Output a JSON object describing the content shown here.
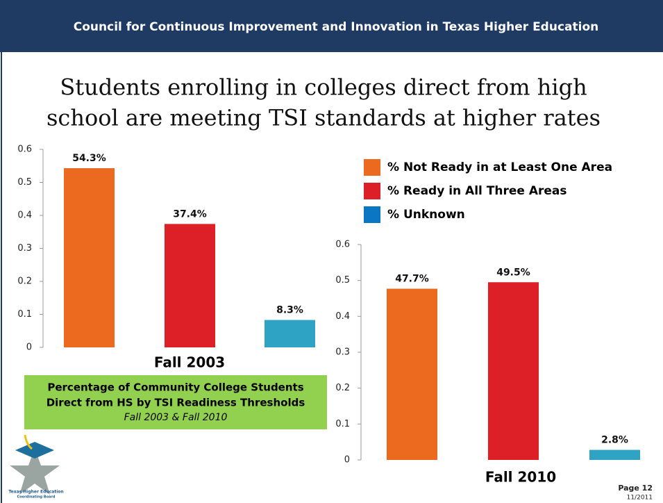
{
  "header": "Council for Continuous Improvement and Innovation in Texas Higher Education",
  "title": [
    "Students enrolling in colleges direct from high",
    "school are meeting TSI standards at higher rates"
  ],
  "chart_data": [
    {
      "type": "bar",
      "categories": [
        "Fall 2003"
      ],
      "series": [
        {
          "name": "% Not Ready in at Least One Area",
          "color": "#ec6a1f",
          "values": [
            0.543
          ],
          "value_labels": [
            "54.3%"
          ]
        },
        {
          "name": "% Ready in All Three Areas",
          "color": "#dd2027",
          "values": [
            0.374
          ],
          "value_labels": [
            "37.4%"
          ]
        },
        {
          "name": "% Unknown",
          "color": "#2ea3c4",
          "values": [
            0.083
          ],
          "value_labels": [
            "8.3%"
          ]
        }
      ],
      "ylim": [
        0,
        0.6
      ],
      "yticks": [
        0,
        0.1,
        0.2,
        0.3,
        0.4,
        0.5,
        0.6
      ]
    },
    {
      "type": "bar",
      "categories": [
        "Fall 2010"
      ],
      "series": [
        {
          "color": "#ec6a1f",
          "values": [
            0.477
          ],
          "value_labels": [
            "47.7%"
          ]
        },
        {
          "color": "#dd2027",
          "values": [
            0.495
          ],
          "value_labels": [
            "49.5%"
          ]
        },
        {
          "color": "#2ea3c4",
          "values": [
            0.028
          ],
          "value_labels": [
            "2.8%"
          ]
        }
      ],
      "ylim": [
        0,
        0.6
      ],
      "yticks": [
        0,
        0.1,
        0.2,
        0.3,
        0.4,
        0.5,
        0.6
      ]
    }
  ],
  "legend_colors": [
    "#ec6a1f",
    "#dd2027",
    "#0b77c4"
  ],
  "caption": [
    "Percentage of Community College Students",
    "Direct from HS by TSI Readiness Thresholds",
    "Fall 2003 & Fall 2010"
  ],
  "logo": [
    "Texas Higher Education",
    "Coordinating Board"
  ],
  "page": "Page 12",
  "date": "11/2011"
}
